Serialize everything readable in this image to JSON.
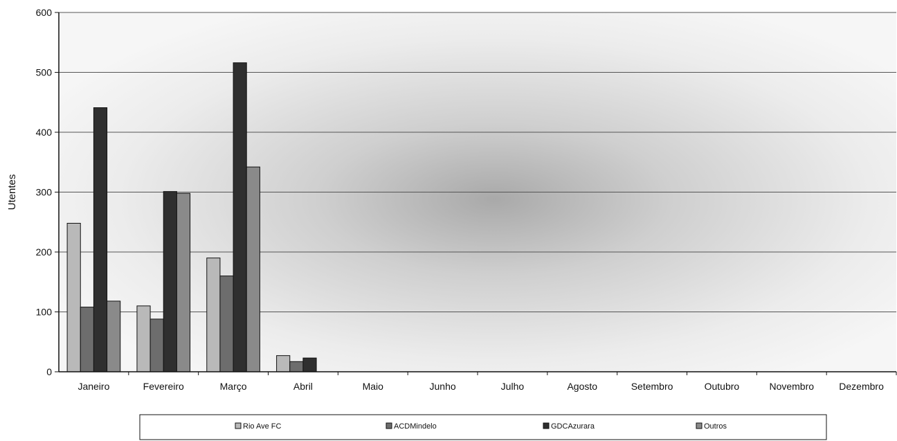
{
  "chart_data": {
    "type": "bar",
    "title": "",
    "xlabel": "",
    "ylabel": "Utentes",
    "ylim": [
      0,
      600
    ],
    "yticks": [
      0,
      100,
      200,
      300,
      400,
      500,
      600
    ],
    "grid": true,
    "legend_position": "bottom",
    "categories": [
      "Janeiro",
      "Fevereiro",
      "Março",
      "Abril",
      "Maio",
      "Junho",
      "Julho",
      "Agosto",
      "Setembro",
      "Outubro",
      "Novembro",
      "Dezembro"
    ],
    "series": [
      {
        "name": "Rio Ave FC",
        "color": "#b9b9b9",
        "values": [
          248,
          110,
          190,
          27,
          null,
          null,
          null,
          null,
          null,
          null,
          null,
          null
        ]
      },
      {
        "name": "ACDMindelo",
        "color": "#6d6d6d",
        "values": [
          108,
          88,
          160,
          17,
          null,
          null,
          null,
          null,
          null,
          null,
          null,
          null
        ]
      },
      {
        "name": "GDCAzurara",
        "color": "#2f2f2f",
        "values": [
          441,
          301,
          516,
          23,
          null,
          null,
          null,
          null,
          null,
          null,
          null,
          null
        ]
      },
      {
        "name": "Outros",
        "color": "#8a8a8a",
        "values": [
          118,
          298,
          342,
          null,
          null,
          null,
          null,
          null,
          null,
          null,
          null,
          null
        ]
      }
    ]
  }
}
